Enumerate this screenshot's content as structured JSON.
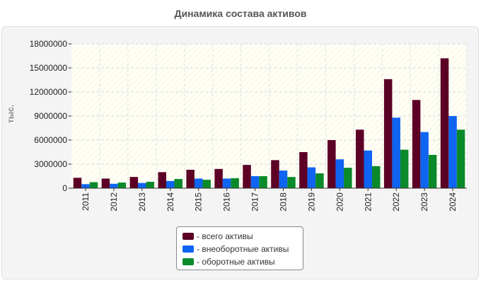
{
  "chart_data": {
    "type": "bar",
    "title": "Динамика состава активов",
    "ylabel": "тыс.",
    "xlabel": "",
    "ylim": [
      0,
      18000000
    ],
    "yticks": [
      0,
      3000000,
      6000000,
      9000000,
      12000000,
      15000000,
      18000000
    ],
    "yticklabels": [
      "0",
      "3000000",
      "6000000",
      "9000000",
      "12000000",
      "15000000",
      "18000000"
    ],
    "grid": true,
    "legend_position": "bottom-center",
    "categories": [
      "2011",
      "2012",
      "2013",
      "2014",
      "2015",
      "2016",
      "2017",
      "2018",
      "2019",
      "2020",
      "2021",
      "2022",
      "2023",
      "2024"
    ],
    "series": [
      {
        "name": "- всего активы",
        "color": "#5c0026",
        "values": [
          1300000,
          1200000,
          1400000,
          2000000,
          2300000,
          2400000,
          2900000,
          3500000,
          4500000,
          6000000,
          7300000,
          13600000,
          11000000,
          16200000
        ]
      },
      {
        "name": "- внеоборотные активы",
        "color": "#0f64f2",
        "values": [
          500000,
          550000,
          650000,
          900000,
          1200000,
          1200000,
          1500000,
          2200000,
          2600000,
          3600000,
          4700000,
          8800000,
          7000000,
          9000000
        ]
      },
      {
        "name": "- оборотные активы",
        "color": "#0a8a2a",
        "values": [
          750000,
          700000,
          800000,
          1150000,
          1050000,
          1250000,
          1500000,
          1400000,
          1850000,
          2550000,
          2750000,
          4800000,
          4150000,
          7300000
        ]
      }
    ]
  }
}
